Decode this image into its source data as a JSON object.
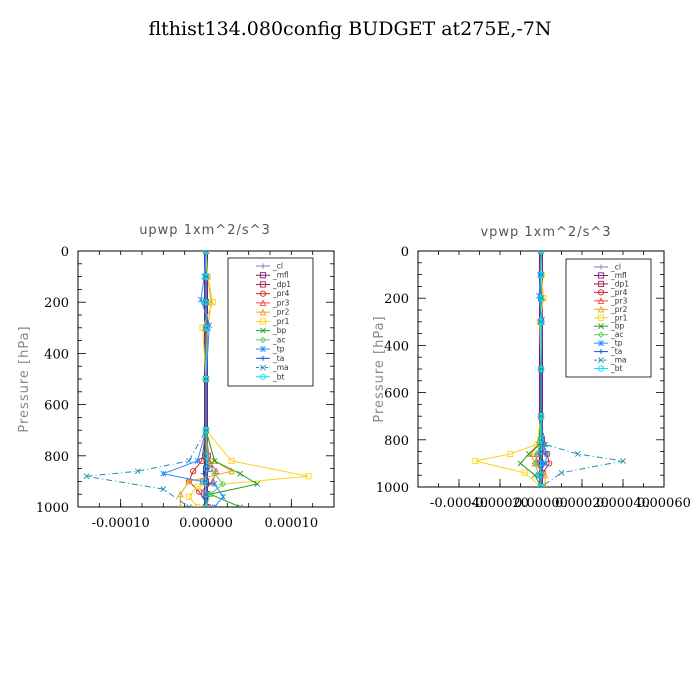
{
  "title": "flthist134.080config  BUDGET at275E,-7N",
  "chart_data": [
    {
      "type": "line",
      "title": "upwp   1xm^2/s^3",
      "xlabel": "",
      "ylabel": "Pressure [hPa]",
      "xlim": [
        -0.00015,
        0.00015
      ],
      "ylim": [
        1000,
        0
      ],
      "yticks": [
        0,
        200,
        400,
        600,
        800,
        1000
      ],
      "ytick_labels": [
        "0",
        "200",
        "400",
        "600",
        "800",
        "1000"
      ],
      "xticks": [
        -0.0001,
        0,
        0.0001
      ],
      "xtick_labels": [
        "-0.00010",
        "0.00000",
        "0.00010"
      ],
      "legend_position": "top-right",
      "grid": false,
      "series": [
        {
          "name": "_cl",
          "color": "#9a6fbf",
          "marker": "plus",
          "dash": "",
          "x": [
            0,
            1e-06,
            -1e-06,
            1e-06,
            -1e-06,
            1e-06,
            0,
            2e-06,
            -2e-06,
            1e-06,
            0
          ],
          "y": [
            0,
            100,
            200,
            300,
            500,
            700,
            800,
            850,
            900,
            950,
            1000
          ]
        },
        {
          "name": "_mfl",
          "color": "#7a1f7a",
          "marker": "square",
          "dash": "",
          "x": [
            0,
            0,
            0,
            0,
            0,
            0,
            0,
            0,
            0,
            0,
            0
          ],
          "y": [
            0,
            100,
            200,
            300,
            500,
            700,
            800,
            850,
            900,
            950,
            1000
          ]
        },
        {
          "name": "_dp1",
          "color": "#a0204a",
          "marker": "square",
          "dash": "",
          "x": [
            0,
            0,
            0,
            0,
            0,
            0,
            2e-06,
            4e-06,
            -3e-06,
            1e-06,
            0
          ],
          "y": [
            0,
            100,
            200,
            300,
            500,
            700,
            800,
            850,
            900,
            950,
            1000
          ]
        },
        {
          "name": "_pr4",
          "color": "#cc2020",
          "marker": "circle",
          "dash": "",
          "x": [
            0,
            0,
            0,
            0,
            0,
            0,
            -5e-06,
            -1.5e-05,
            -2e-05,
            -8e-06,
            3e-06
          ],
          "y": [
            0,
            100,
            200,
            300,
            500,
            700,
            820,
            860,
            900,
            940,
            1000
          ]
        },
        {
          "name": "_pr3",
          "color": "#ff4444",
          "marker": "triangle",
          "dash": "",
          "x": [
            0,
            0,
            0,
            0,
            0,
            0,
            4e-06,
            1.2e-05,
            8e-06,
            -3e-06,
            0
          ],
          "y": [
            0,
            100,
            200,
            300,
            500,
            700,
            820,
            860,
            900,
            940,
            1000
          ]
        },
        {
          "name": "_pr2",
          "color": "#f0a020",
          "marker": "triangle",
          "dash": "",
          "x": [
            0,
            2e-06,
            6e-06,
            2e-06,
            0,
            0,
            1e-05,
            3e-05,
            -2e-05,
            -3e-05,
            -3e-05
          ],
          "y": [
            0,
            100,
            200,
            300,
            500,
            700,
            820,
            860,
            900,
            950,
            1000
          ]
        },
        {
          "name": "_pr1",
          "color": "#ffd020",
          "marker": "square",
          "dash": "",
          "x": [
            0,
            2e-06,
            8e-06,
            -4e-06,
            0,
            0,
            3e-05,
            0.00012,
            -1e-05,
            -2e-05,
            -1e-05
          ],
          "y": [
            0,
            100,
            200,
            300,
            500,
            700,
            820,
            880,
            920,
            960,
            1000
          ]
        },
        {
          "name": "_bp",
          "color": "#20a020",
          "marker": "x",
          "dash": "",
          "x": [
            0,
            0,
            0,
            0,
            0,
            0,
            1e-05,
            4e-05,
            6e-05,
            5e-06,
            4e-05
          ],
          "y": [
            0,
            100,
            200,
            300,
            500,
            700,
            820,
            870,
            910,
            950,
            1000
          ]
        },
        {
          "name": "_ac",
          "color": "#60d060",
          "marker": "diamond",
          "dash": "",
          "x": [
            0,
            0,
            0,
            0,
            0,
            0,
            2e-06,
            1e-05,
            2e-05,
            5e-06,
            0
          ],
          "y": [
            0,
            100,
            200,
            300,
            500,
            700,
            820,
            870,
            910,
            950,
            1000
          ]
        },
        {
          "name": "_tp",
          "color": "#2090ff",
          "marker": "star",
          "dash": "",
          "x": [
            0,
            -2e-06,
            -6e-06,
            4e-06,
            0,
            0,
            -1e-05,
            -5e-05,
            1e-05,
            2e-05,
            1e-05
          ],
          "y": [
            0,
            100,
            190,
            290,
            500,
            700,
            820,
            870,
            910,
            960,
            1000
          ]
        },
        {
          "name": "_ta",
          "color": "#2050d0",
          "marker": "plus",
          "dash": "",
          "x": [
            0,
            0,
            0,
            0,
            0,
            0,
            0,
            -3e-06,
            3e-06,
            -2e-06,
            0
          ],
          "y": [
            0,
            100,
            200,
            300,
            500,
            700,
            820,
            870,
            910,
            960,
            1000
          ]
        },
        {
          "name": "_ma",
          "color": "#2090b0",
          "marker": "x",
          "dash": "6,3,1,3",
          "x": [
            0,
            0,
            0,
            0,
            0,
            0,
            -2e-05,
            -8e-05,
            -0.00014,
            -5e-05,
            -2e-05
          ],
          "y": [
            0,
            100,
            200,
            300,
            500,
            700,
            820,
            860,
            880,
            930,
            1000
          ]
        },
        {
          "name": "_bt",
          "color": "#00e0ff",
          "marker": "circle",
          "dash": "",
          "x": [
            0,
            0,
            0,
            0,
            0,
            0,
            0,
            1e-06,
            -1e-06,
            0,
            0
          ],
          "y": [
            0,
            100,
            200,
            300,
            500,
            700,
            800,
            850,
            900,
            950,
            1000
          ]
        }
      ]
    },
    {
      "type": "line",
      "title": "vpwp   1xm^2/s^3",
      "xlabel": "",
      "ylabel": "Pressure [hPa]",
      "xlim": [
        -0.0006,
        0.0006
      ],
      "ylim": [
        1000,
        0
      ],
      "yticks": [
        0,
        200,
        400,
        600,
        800,
        1000
      ],
      "ytick_labels": [
        "0",
        "200",
        "400",
        "600",
        "800",
        "1000"
      ],
      "xticks": [
        -0.0004,
        -0.0002,
        0,
        0.0002,
        0.0004,
        0.0006
      ],
      "xtick_labels": [
        "-0.00040",
        "-0.00020",
        "0.00000",
        "0.00020",
        "0.00040",
        "0.00060"
      ],
      "legend_position": "top-right",
      "grid": false,
      "series": [
        {
          "name": "_cl",
          "color": "#9a6fbf",
          "marker": "plus",
          "dash": "",
          "x": [
            0,
            0,
            0,
            0,
            0,
            0,
            0,
            4e-06,
            -4e-06,
            0,
            0
          ],
          "y": [
            0,
            100,
            200,
            300,
            500,
            700,
            800,
            850,
            900,
            950,
            1000
          ]
        },
        {
          "name": "_mfl",
          "color": "#7a1f7a",
          "marker": "square",
          "dash": "",
          "x": [
            0,
            0,
            0,
            0,
            0,
            0,
            0,
            0,
            0,
            0,
            0
          ],
          "y": [
            0,
            100,
            200,
            300,
            500,
            700,
            800,
            850,
            900,
            950,
            1000
          ]
        },
        {
          "name": "_dp1",
          "color": "#a0204a",
          "marker": "square",
          "dash": "",
          "x": [
            0,
            0,
            0,
            0,
            0,
            0,
            5e-06,
            1e-05,
            -5e-06,
            0,
            0
          ],
          "y": [
            0,
            100,
            200,
            300,
            500,
            700,
            800,
            850,
            900,
            950,
            1000
          ]
        },
        {
          "name": "_pr4",
          "color": "#cc2020",
          "marker": "circle",
          "dash": "",
          "x": [
            0,
            0,
            0,
            0,
            0,
            0,
            1e-05,
            3e-05,
            4e-05,
            1e-05,
            0
          ],
          "y": [
            0,
            100,
            200,
            300,
            500,
            700,
            820,
            860,
            900,
            940,
            1000
          ]
        },
        {
          "name": "_pr3",
          "color": "#ff4444",
          "marker": "triangle",
          "dash": "",
          "x": [
            0,
            0,
            0,
            0,
            0,
            0,
            -5e-06,
            -2e-05,
            -2e-05,
            0,
            0
          ],
          "y": [
            0,
            100,
            200,
            300,
            500,
            700,
            820,
            860,
            900,
            940,
            1000
          ]
        },
        {
          "name": "_pr2",
          "color": "#f0a020",
          "marker": "triangle",
          "dash": "",
          "x": [
            0,
            3e-06,
            8e-06,
            3e-06,
            0,
            0,
            -1e-05,
            -5e-05,
            -3e-05,
            2e-05,
            2e-05
          ],
          "y": [
            0,
            100,
            200,
            300,
            500,
            700,
            820,
            860,
            900,
            950,
            1000
          ]
        },
        {
          "name": "_pr1",
          "color": "#ffd020",
          "marker": "square",
          "dash": "",
          "x": [
            0,
            3e-06,
            1.2e-05,
            -6e-06,
            0,
            0,
            -2e-05,
            -0.00015,
            -0.00032,
            -8e-05,
            0
          ],
          "y": [
            0,
            100,
            200,
            300,
            500,
            700,
            820,
            860,
            890,
            940,
            1000
          ]
        },
        {
          "name": "_bp",
          "color": "#20a020",
          "marker": "x",
          "dash": "",
          "x": [
            0,
            0,
            0,
            0,
            0,
            0,
            -1e-05,
            -6e-05,
            -0.0001,
            -3e-05,
            0
          ],
          "y": [
            0,
            100,
            200,
            300,
            500,
            700,
            820,
            860,
            900,
            950,
            1000
          ]
        },
        {
          "name": "_ac",
          "color": "#60d060",
          "marker": "diamond",
          "dash": "",
          "x": [
            0,
            0,
            0,
            0,
            0,
            0,
            -5e-06,
            -2e-05,
            -3e-05,
            -1e-05,
            0
          ],
          "y": [
            0,
            100,
            200,
            300,
            500,
            700,
            820,
            860,
            900,
            950,
            1000
          ]
        },
        {
          "name": "_tp",
          "color": "#2090ff",
          "marker": "star",
          "dash": "",
          "x": [
            0,
            -3e-06,
            -1e-05,
            5e-06,
            0,
            0,
            1e-05,
            3e-05,
            2e-05,
            -1e-05,
            0
          ],
          "y": [
            0,
            100,
            190,
            290,
            500,
            700,
            820,
            860,
            900,
            950,
            1000
          ]
        },
        {
          "name": "_ta",
          "color": "#2050d0",
          "marker": "plus",
          "dash": "",
          "x": [
            0,
            0,
            0,
            0,
            0,
            0,
            0,
            -5e-06,
            5e-06,
            0,
            0
          ],
          "y": [
            0,
            100,
            200,
            300,
            500,
            700,
            820,
            860,
            900,
            950,
            1000
          ]
        },
        {
          "name": "_ma",
          "color": "#2090b0",
          "marker": "x",
          "dash": "6,3,1,3",
          "x": [
            0,
            0,
            0,
            0,
            0,
            0,
            2e-05,
            0.00018,
            0.0004,
            0.0001,
            0
          ],
          "y": [
            0,
            100,
            200,
            300,
            500,
            700,
            820,
            860,
            890,
            940,
            1000
          ]
        },
        {
          "name": "_bt",
          "color": "#00e0ff",
          "marker": "circle",
          "dash": "",
          "x": [
            0,
            0,
            0,
            0,
            0,
            0,
            0,
            2e-06,
            -2e-06,
            0,
            0
          ],
          "y": [
            0,
            100,
            200,
            300,
            500,
            700,
            800,
            850,
            900,
            950,
            1000
          ]
        }
      ]
    }
  ]
}
